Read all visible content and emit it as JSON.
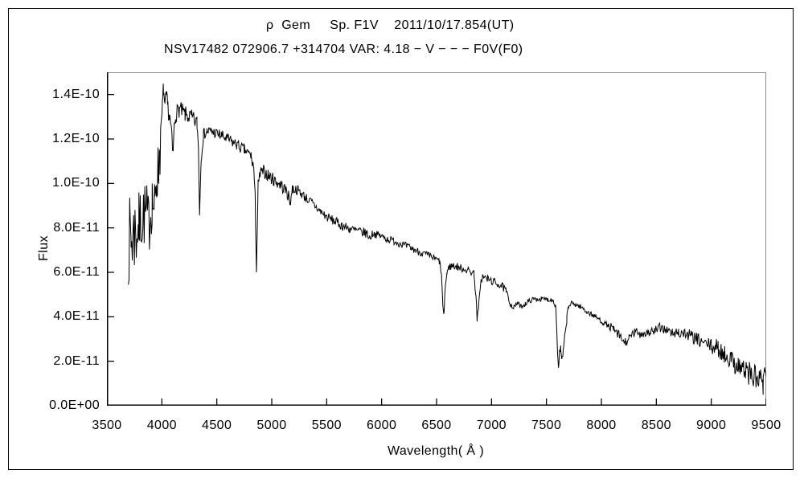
{
  "figure": {
    "title_line1": "ρ  Gem     Sp. F1V    2011/10/17.854(UT)",
    "title_line2": "NSV17482 072906.7 +314704 VAR: 4.18 − V − − − F0V(F0)"
  },
  "chart_data": {
    "type": "line",
    "title": "ρ  Gem     Sp. F1V    2011/10/17.854(UT)",
    "subtitle": "NSV17482 072906.7 +314704 VAR: 4.18 − V − − − F0V(F0)",
    "xlabel": "Wavelength( Å )",
    "ylabel": "Flux",
    "xlim": [
      3500,
      9500
    ],
    "ylim": [
      0,
      1.5e-10
    ],
    "grid": false,
    "legend": "none",
    "frame_color": "#8a8a8a",
    "axis_color": "#000000",
    "line_color": "#000000",
    "background_color": "#ffffff",
    "xticks": {
      "values": [
        3500,
        4000,
        4500,
        5000,
        5500,
        6000,
        6500,
        7000,
        7500,
        8000,
        8500,
        9000,
        9500
      ],
      "labels": [
        "3500",
        "4000",
        "4500",
        "5000",
        "5500",
        "6000",
        "6500",
        "7000",
        "7500",
        "8000",
        "8500",
        "9000",
        "9500"
      ]
    },
    "yticks": {
      "values_e11": [
        0,
        2,
        4,
        6,
        8,
        10,
        12,
        14
      ],
      "labels": [
        "0.0E+00",
        "2.0E-11",
        "4.0E-11",
        "6.0E-11",
        "8.0E-11",
        "1.0E-10",
        "1.2E-10",
        "1.4E-10"
      ]
    },
    "flux_unit_scale": 1e-11,
    "series": [
      {
        "name": "spectrum",
        "x_start": 3695,
        "x_end": 9500,
        "x_step": 6,
        "noise_seed": 7,
        "anchors_e11": [
          [
            3695,
            7.4
          ],
          [
            3720,
            7.5
          ],
          [
            3750,
            7.7
          ],
          [
            3790,
            8.1
          ],
          [
            3830,
            8.7
          ],
          [
            3860,
            8.5
          ],
          [
            3889,
            8.2
          ],
          [
            3912,
            9.3
          ],
          [
            3934,
            8.8
          ],
          [
            3952,
            10.3
          ],
          [
            3968,
            10.6
          ],
          [
            3982,
            11.5
          ],
          [
            3995,
            12.5
          ],
          [
            4005,
            13.5
          ],
          [
            4015,
            14.3
          ],
          [
            4028,
            13.3
          ],
          [
            4038,
            13.9
          ],
          [
            4052,
            13.5
          ],
          [
            4070,
            13.0
          ],
          [
            4085,
            12.4
          ],
          [
            4100,
            11.2
          ],
          [
            4112,
            12.5
          ],
          [
            4125,
            13.1
          ],
          [
            4160,
            13.35
          ],
          [
            4210,
            13.1
          ],
          [
            4270,
            12.95
          ],
          [
            4320,
            12.7
          ],
          [
            4333,
            11.6
          ],
          [
            4343,
            8.7
          ],
          [
            4358,
            11.2
          ],
          [
            4378,
            12.2
          ],
          [
            4410,
            12.35
          ],
          [
            4470,
            12.3
          ],
          [
            4540,
            12.15
          ],
          [
            4610,
            11.95
          ],
          [
            4680,
            11.75
          ],
          [
            4750,
            11.5
          ],
          [
            4810,
            11.25
          ],
          [
            4836,
            10.7
          ],
          [
            4849,
            9.3
          ],
          [
            4861,
            6.13
          ],
          [
            4876,
            9.9
          ],
          [
            4896,
            10.45
          ],
          [
            4926,
            10.55
          ],
          [
            4970,
            10.35
          ],
          [
            5020,
            10.15
          ],
          [
            5080,
            9.95
          ],
          [
            5140,
            9.6
          ],
          [
            5166,
            9.15
          ],
          [
            5188,
            9.75
          ],
          [
            5240,
            9.7
          ],
          [
            5300,
            9.4
          ],
          [
            5360,
            9.15
          ],
          [
            5430,
            8.8
          ],
          [
            5500,
            8.5
          ],
          [
            5570,
            8.3
          ],
          [
            5640,
            8.1
          ],
          [
            5710,
            7.95
          ],
          [
            5790,
            7.85
          ],
          [
            5868,
            7.75
          ],
          [
            5893,
            7.55
          ],
          [
            5918,
            7.75
          ],
          [
            5985,
            7.65
          ],
          [
            6050,
            7.5
          ],
          [
            6120,
            7.4
          ],
          [
            6190,
            7.25
          ],
          [
            6260,
            7.1
          ],
          [
            6330,
            6.95
          ],
          [
            6400,
            6.8
          ],
          [
            6470,
            6.65
          ],
          [
            6525,
            6.5
          ],
          [
            6543,
            6.0
          ],
          [
            6556,
            4.6
          ],
          [
            6565,
            3.95
          ],
          [
            6578,
            5.3
          ],
          [
            6594,
            5.95
          ],
          [
            6615,
            6.25
          ],
          [
            6655,
            6.3
          ],
          [
            6720,
            6.2
          ],
          [
            6790,
            6.1
          ],
          [
            6842,
            5.95
          ],
          [
            6858,
            4.9
          ],
          [
            6870,
            3.85
          ],
          [
            6884,
            4.5
          ],
          [
            6898,
            5.45
          ],
          [
            6918,
            5.8
          ],
          [
            6962,
            5.7
          ],
          [
            7030,
            5.55
          ],
          [
            7092,
            5.4
          ],
          [
            7132,
            5.15
          ],
          [
            7168,
            4.6
          ],
          [
            7200,
            4.4
          ],
          [
            7236,
            4.62
          ],
          [
            7270,
            4.45
          ],
          [
            7306,
            4.58
          ],
          [
            7342,
            4.72
          ],
          [
            7392,
            4.8
          ],
          [
            7452,
            4.8
          ],
          [
            7512,
            4.78
          ],
          [
            7562,
            4.75
          ],
          [
            7586,
            4.45
          ],
          [
            7599,
            2.6
          ],
          [
            7609,
            1.75
          ],
          [
            7619,
            2.35
          ],
          [
            7629,
            2.6
          ],
          [
            7640,
            1.95
          ],
          [
            7653,
            2.45
          ],
          [
            7669,
            3.15
          ],
          [
            7686,
            3.95
          ],
          [
            7702,
            4.45
          ],
          [
            7722,
            4.6
          ],
          [
            7762,
            4.55
          ],
          [
            7812,
            4.45
          ],
          [
            7862,
            4.25
          ],
          [
            7912,
            4.1
          ],
          [
            7962,
            3.95
          ],
          [
            8012,
            3.75
          ],
          [
            8062,
            3.6
          ],
          [
            8112,
            3.4
          ],
          [
            8156,
            3.2
          ],
          [
            8188,
            2.95
          ],
          [
            8218,
            2.85
          ],
          [
            8252,
            3.0
          ],
          [
            8302,
            3.3
          ],
          [
            8362,
            3.25
          ],
          [
            8422,
            3.3
          ],
          [
            8482,
            3.35
          ],
          [
            8532,
            3.5
          ],
          [
            8582,
            3.45
          ],
          [
            8642,
            3.25
          ],
          [
            8702,
            3.3
          ],
          [
            8762,
            3.25
          ],
          [
            8822,
            3.1
          ],
          [
            8882,
            2.95
          ],
          [
            8942,
            2.8
          ],
          [
            9002,
            2.7
          ],
          [
            9062,
            2.55
          ],
          [
            9122,
            2.3
          ],
          [
            9182,
            2.1
          ],
          [
            9242,
            1.85
          ],
          [
            9302,
            1.6
          ],
          [
            9362,
            1.4
          ],
          [
            9422,
            1.15
          ],
          [
            9472,
            1.0
          ],
          [
            9500,
            1.2
          ]
        ],
        "noise_regions_e11": [
          [
            3695,
            3770,
            2.0
          ],
          [
            3770,
            3870,
            1.55
          ],
          [
            3870,
            3990,
            1.3
          ],
          [
            3990,
            4125,
            0.42
          ],
          [
            4125,
            4330,
            0.38
          ],
          [
            4330,
            4840,
            0.27
          ],
          [
            4840,
            5200,
            0.3
          ],
          [
            5200,
            5900,
            0.22
          ],
          [
            5900,
            6530,
            0.17
          ],
          [
            6530,
            7150,
            0.18
          ],
          [
            7150,
            7585,
            0.11
          ],
          [
            7585,
            7700,
            0.2
          ],
          [
            7700,
            8080,
            0.12
          ],
          [
            8080,
            8700,
            0.22
          ],
          [
            8700,
            9000,
            0.3
          ],
          [
            9000,
            9200,
            0.42
          ],
          [
            9200,
            9380,
            0.55
          ],
          [
            9380,
            9500,
            0.68
          ]
        ]
      }
    ]
  }
}
